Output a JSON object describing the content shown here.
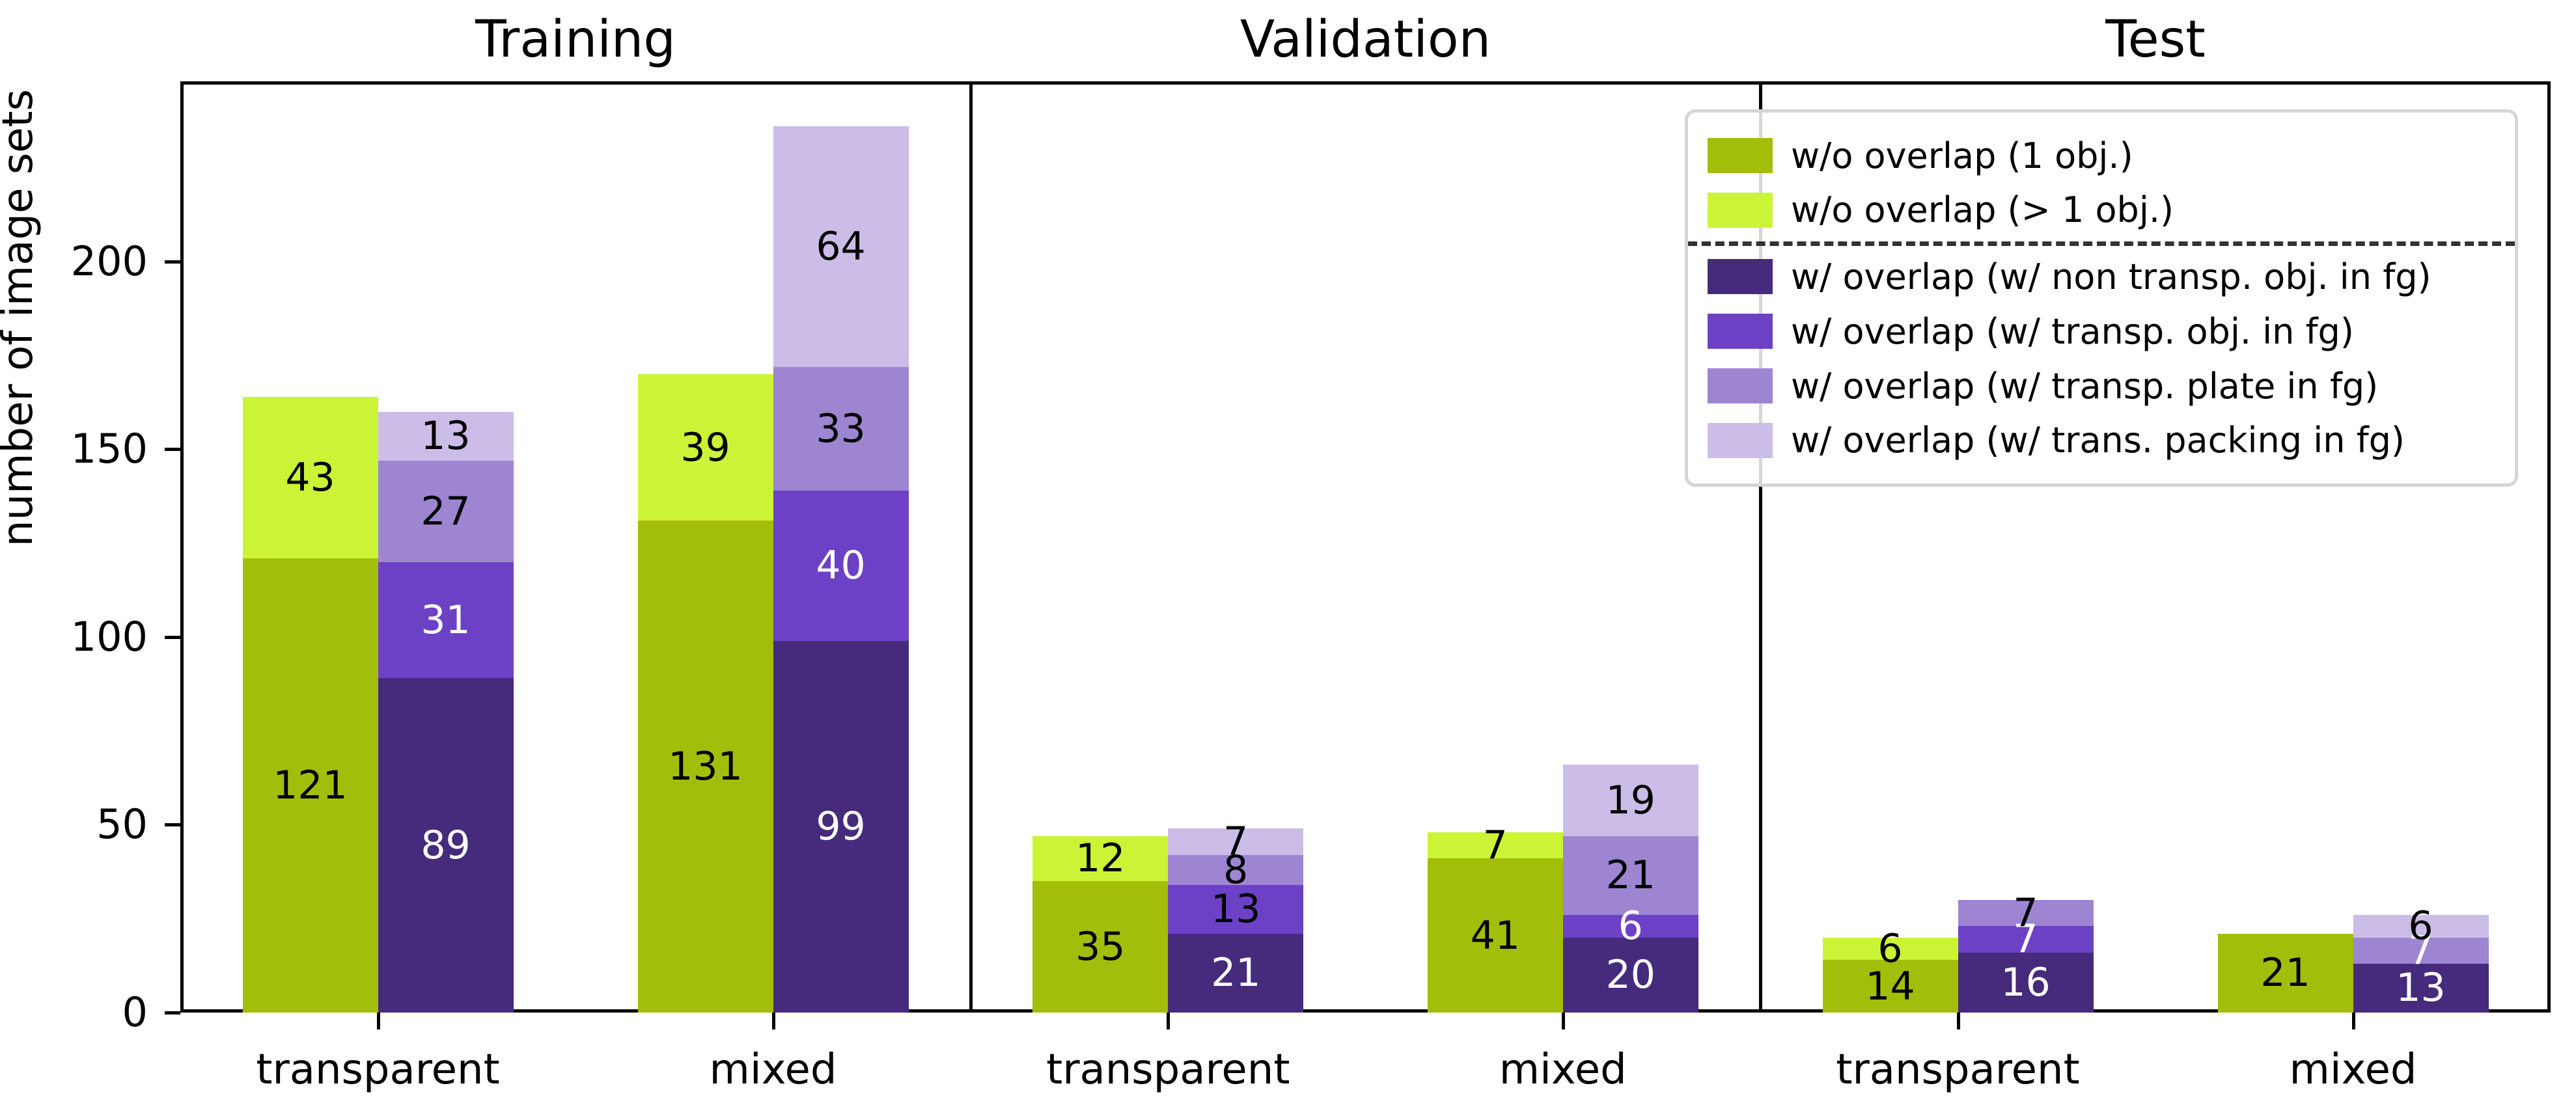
{
  "ylabel": "number of image sets",
  "xticklabels": [
    "transparent",
    "mixed"
  ],
  "series": {
    "g1": {
      "label": "w/o overlap (1 obj.)",
      "color": "#A3BE0A"
    },
    "g2": {
      "label": "w/o overlap (> 1 obj.)",
      "color": "#CBF436"
    },
    "p1": {
      "label": "w/ overlap (w/ non transp. obj. in fg)",
      "color": "#462A7C"
    },
    "p2": {
      "label": "w/ overlap (w/ transp. obj. in fg)",
      "color": "#6C41C5"
    },
    "p3": {
      "label": "w/ overlap (w/ transp. plate in fg)",
      "color": "#9E85D2"
    },
    "p4": {
      "label": "w/ overlap (w/ trans. packing in fg)",
      "color": "#CBBDE8"
    }
  },
  "legend": {
    "order": [
      "g1",
      "g2",
      "p1",
      "p2",
      "p3",
      "p4"
    ],
    "separator_after_index": 1
  },
  "chart_data": {
    "type": "bar",
    "stacked": true,
    "title": "",
    "xlabel": "",
    "ylabel": "number of image sets",
    "ylim": [
      0,
      248
    ],
    "yticks": [
      0,
      50,
      100,
      150,
      200
    ],
    "legend_position": "upper right",
    "grid": false,
    "panels": [
      {
        "title": "Training",
        "groups": [
          {
            "category": "transparent",
            "bars": [
              {
                "name": "without-overlap",
                "segments": [
                  {
                    "series": "g1",
                    "value": 121,
                    "label_color": "black"
                  },
                  {
                    "series": "g2",
                    "value": 43,
                    "label_color": "black"
                  }
                ]
              },
              {
                "name": "with-overlap",
                "segments": [
                  {
                    "series": "p1",
                    "value": 89,
                    "label_color": "white"
                  },
                  {
                    "series": "p2",
                    "value": 31,
                    "label_color": "white"
                  },
                  {
                    "series": "p3",
                    "value": 27,
                    "label_color": "black"
                  },
                  {
                    "series": "p4",
                    "value": 13,
                    "label_color": "black"
                  }
                ]
              }
            ]
          },
          {
            "category": "mixed",
            "bars": [
              {
                "name": "without-overlap",
                "segments": [
                  {
                    "series": "g1",
                    "value": 131,
                    "label_color": "black"
                  },
                  {
                    "series": "g2",
                    "value": 39,
                    "label_color": "black"
                  }
                ]
              },
              {
                "name": "with-overlap",
                "segments": [
                  {
                    "series": "p1",
                    "value": 99,
                    "label_color": "white"
                  },
                  {
                    "series": "p2",
                    "value": 40,
                    "label_color": "white"
                  },
                  {
                    "series": "p3",
                    "value": 33,
                    "label_color": "black"
                  },
                  {
                    "series": "p4",
                    "value": 64,
                    "label_color": "black"
                  }
                ]
              }
            ]
          }
        ]
      },
      {
        "title": "Validation",
        "groups": [
          {
            "category": "transparent",
            "bars": [
              {
                "name": "without-overlap",
                "segments": [
                  {
                    "series": "g1",
                    "value": 35,
                    "label_color": "black"
                  },
                  {
                    "series": "g2",
                    "value": 12,
                    "label_color": "black"
                  }
                ]
              },
              {
                "name": "with-overlap",
                "segments": [
                  {
                    "series": "p1",
                    "value": 21,
                    "label_color": "white"
                  },
                  {
                    "series": "p2",
                    "value": 13,
                    "label_color": "black"
                  },
                  {
                    "series": "p3",
                    "value": 8,
                    "label_color": "black"
                  },
                  {
                    "series": "p4",
                    "value": 7,
                    "label_color": "black"
                  }
                ]
              }
            ]
          },
          {
            "category": "mixed",
            "bars": [
              {
                "name": "without-overlap",
                "segments": [
                  {
                    "series": "g1",
                    "value": 41,
                    "label_color": "black"
                  },
                  {
                    "series": "g2",
                    "value": 7,
                    "label_color": "black"
                  }
                ]
              },
              {
                "name": "with-overlap",
                "segments": [
                  {
                    "series": "p1",
                    "value": 20,
                    "label_color": "white"
                  },
                  {
                    "series": "p2",
                    "value": 6,
                    "label_color": "white"
                  },
                  {
                    "series": "p3",
                    "value": 21,
                    "label_color": "black"
                  },
                  {
                    "series": "p4",
                    "value": 19,
                    "label_color": "black"
                  }
                ]
              }
            ]
          }
        ]
      },
      {
        "title": "Test",
        "groups": [
          {
            "category": "transparent",
            "bars": [
              {
                "name": "without-overlap",
                "segments": [
                  {
                    "series": "g1",
                    "value": 14,
                    "label_color": "black"
                  },
                  {
                    "series": "g2",
                    "value": 6,
                    "label_color": "black"
                  }
                ]
              },
              {
                "name": "with-overlap",
                "segments": [
                  {
                    "series": "p1",
                    "value": 16,
                    "label_color": "white"
                  },
                  {
                    "series": "p2",
                    "value": 7,
                    "label_color": "white"
                  },
                  {
                    "series": "p3",
                    "value": 7,
                    "label_color": "black"
                  }
                ]
              }
            ]
          },
          {
            "category": "mixed",
            "bars": [
              {
                "name": "without-overlap",
                "segments": [
                  {
                    "series": "g1",
                    "value": 21,
                    "label_color": "black"
                  }
                ]
              },
              {
                "name": "with-overlap",
                "segments": [
                  {
                    "series": "p1",
                    "value": 13,
                    "label_color": "white"
                  },
                  {
                    "series": "p3",
                    "value": 7,
                    "label_color": "white"
                  },
                  {
                    "series": "p4",
                    "value": 6,
                    "label_color": "black"
                  }
                ]
              }
            ]
          }
        ]
      }
    ]
  }
}
